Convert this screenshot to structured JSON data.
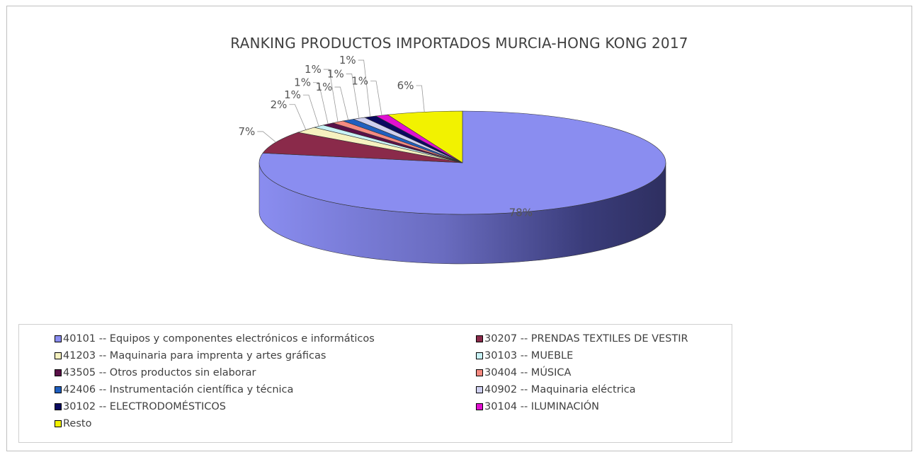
{
  "chart_data": {
    "type": "pie",
    "title": "RANKING PRODUCTOS IMPORTADOS MURCIA-HONG KONG 2017",
    "legend_position": "bottom",
    "slices": [
      {
        "label": "40101 -- Equipos y componentes electrónicos e informáticos",
        "value": 78,
        "display": "78%",
        "color": "#8a8df0"
      },
      {
        "label": "30207 -- PRENDAS TEXTILES DE VESTIR",
        "value": 7,
        "display": "7%",
        "color": "#8a2a4a"
      },
      {
        "label": "41203 -- Maquinaria para imprenta y artes gráficas",
        "value": 2,
        "display": "2%",
        "color": "#f6f2c0"
      },
      {
        "label": "30103 -- MUEBLE",
        "value": 1,
        "display": "1%",
        "color": "#c8f2f6"
      },
      {
        "label": "43505 -- Otros productos sin elaborar",
        "value": 1,
        "display": "1%",
        "color": "#5a1048"
      },
      {
        "label": "30404 -- MÚSICA",
        "value": 1,
        "display": "1%",
        "color": "#f58a80"
      },
      {
        "label": "42406 -- Instrumentación científica y técnica",
        "value": 1,
        "display": "1%",
        "color": "#1f5fbf"
      },
      {
        "label": "40902 -- Maquinaria eléctrica",
        "value": 1,
        "display": "1%",
        "color": "#cfd0f0"
      },
      {
        "label": "30102 -- ELECTRODOMÉSTICOS",
        "value": 1,
        "display": "1%",
        "color": "#0a0a60"
      },
      {
        "label": "30104 -- ILUMINACIÓN",
        "value": 1,
        "display": "1%",
        "color": "#e010d0"
      },
      {
        "label": "Resto",
        "value": 6,
        "display": "6%",
        "color": "#f2f200"
      }
    ]
  }
}
